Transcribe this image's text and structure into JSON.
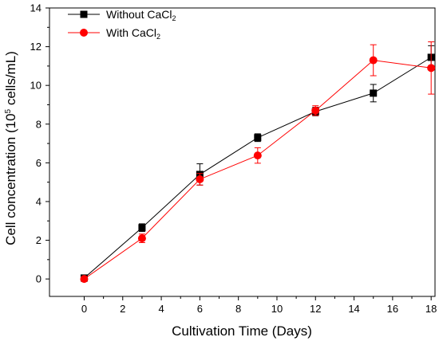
{
  "chart_data": {
    "type": "line",
    "xlabel": "Cultivation Time (Days)",
    "ylabel_parts": {
      "pre": "Cell concentration (10",
      "sup": "5",
      "post": " cells/mL)"
    },
    "xlim": [
      -1.8,
      18.2
    ],
    "ylim": [
      -0.9,
      14
    ],
    "xticks": [
      0,
      2,
      4,
      6,
      8,
      10,
      12,
      14,
      16,
      18
    ],
    "yticks": [
      0,
      2,
      4,
      6,
      8,
      10,
      12,
      14
    ],
    "grid": false,
    "legend_position": "top-left",
    "series": [
      {
        "legend_parts": {
          "pre": "Without CaCl",
          "sub": "2"
        },
        "color": "#000000",
        "marker": "square",
        "x": [
          0,
          3,
          6,
          9,
          12,
          15,
          18
        ],
        "y": [
          0.05,
          2.65,
          5.4,
          7.3,
          8.65,
          9.6,
          11.45
        ],
        "err": [
          0.08,
          0.2,
          0.55,
          0.2,
          0.22,
          0.45,
          0.6
        ]
      },
      {
        "legend_parts": {
          "pre": "With CaCl",
          "sub": "2"
        },
        "color": "#ff0000",
        "marker": "circle",
        "x": [
          0,
          3,
          6,
          9,
          12,
          15,
          18
        ],
        "y": [
          0.0,
          2.1,
          5.15,
          6.38,
          8.7,
          11.3,
          10.9
        ],
        "err": [
          0.08,
          0.22,
          0.3,
          0.4,
          0.25,
          0.8,
          1.35
        ]
      }
    ]
  }
}
